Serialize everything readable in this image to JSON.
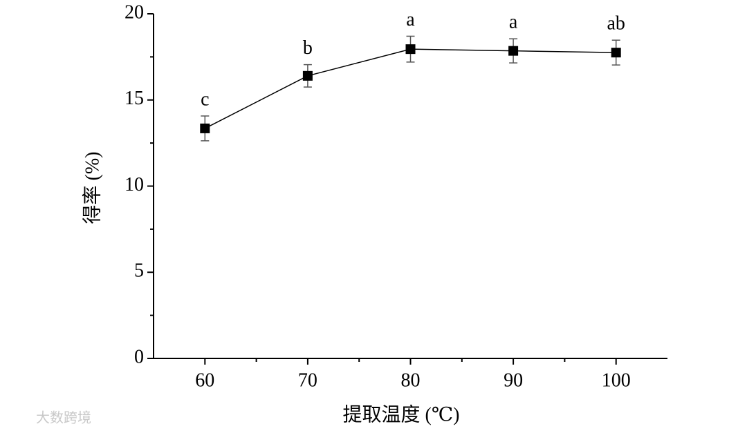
{
  "chart_data": {
    "type": "line",
    "x_label": "提取温度 (℃)",
    "y_label": "得率 (%)",
    "x": [
      60,
      70,
      80,
      90,
      100
    ],
    "series": [
      {
        "color": "#000000",
        "values": [
          13.35,
          16.4,
          17.95,
          17.85,
          17.75
        ],
        "errors": [
          0.72,
          0.65,
          0.75,
          0.7,
          0.72
        ]
      }
    ],
    "annotations": [
      "c",
      "b",
      "a",
      "a",
      "ab"
    ],
    "xlim": [
      55,
      105
    ],
    "xticks": [
      60,
      70,
      80,
      90,
      100
    ],
    "xminorticks": [
      65,
      75,
      85,
      95
    ],
    "ylim": [
      0,
      20
    ],
    "yticks": [
      0,
      5,
      10,
      15,
      20
    ],
    "yminorticks": [
      2.5,
      7.5,
      12.5,
      17.5
    ],
    "watermark": "大数跨境"
  }
}
